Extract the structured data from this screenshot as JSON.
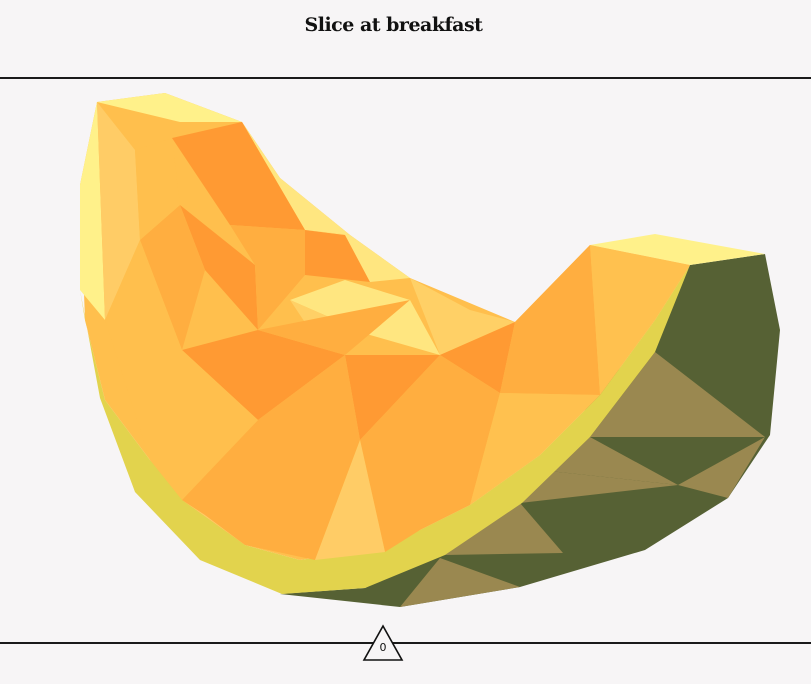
{
  "header": {
    "title": "Slice at breakfast"
  },
  "illustration": {
    "subject": "low-poly melon slice",
    "colors": {
      "background": "#f7f5f6",
      "flesh_light": "#ffe680",
      "flesh_mid": "#ffbf4d",
      "flesh_deep": "#ff9a33",
      "rind_yellow": "#e2d34d",
      "rind_dark": "#566134",
      "rind_tan": "#9a8850"
    }
  },
  "footer": {
    "marker_value": "0",
    "marker_icon": "triangle-icon"
  }
}
